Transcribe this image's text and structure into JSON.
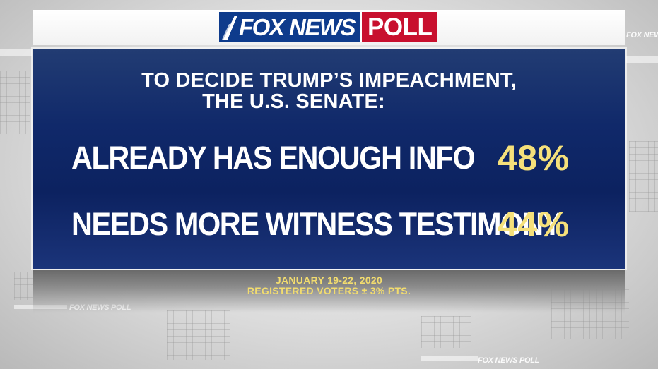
{
  "brand": {
    "network": "FOX NEWS",
    "badge": "POLL",
    "colors": {
      "fox_blue": "#0e3b8c",
      "poll_red": "#c8102e"
    }
  },
  "panel": {
    "question": {
      "line1": "TO DECIDE TRUMP’S IMPEACHMENT,",
      "line2": "THE U.S. SENATE:"
    },
    "results": [
      {
        "label": "ALREADY HAS ENOUGH INFO",
        "value": "48%"
      },
      {
        "label": "NEEDS MORE WITNESS TESTIMONY",
        "value": "44%"
      }
    ],
    "colors": {
      "panel_blue": "#10296a",
      "value_yellow": "#f5e07a"
    }
  },
  "footer": {
    "dates": "JANUARY 19-22, 2020",
    "sample": "REGISTERED VOTERS ± 3% PTS."
  },
  "background": {
    "watermark_text": "FOX NEWS POLL"
  }
}
